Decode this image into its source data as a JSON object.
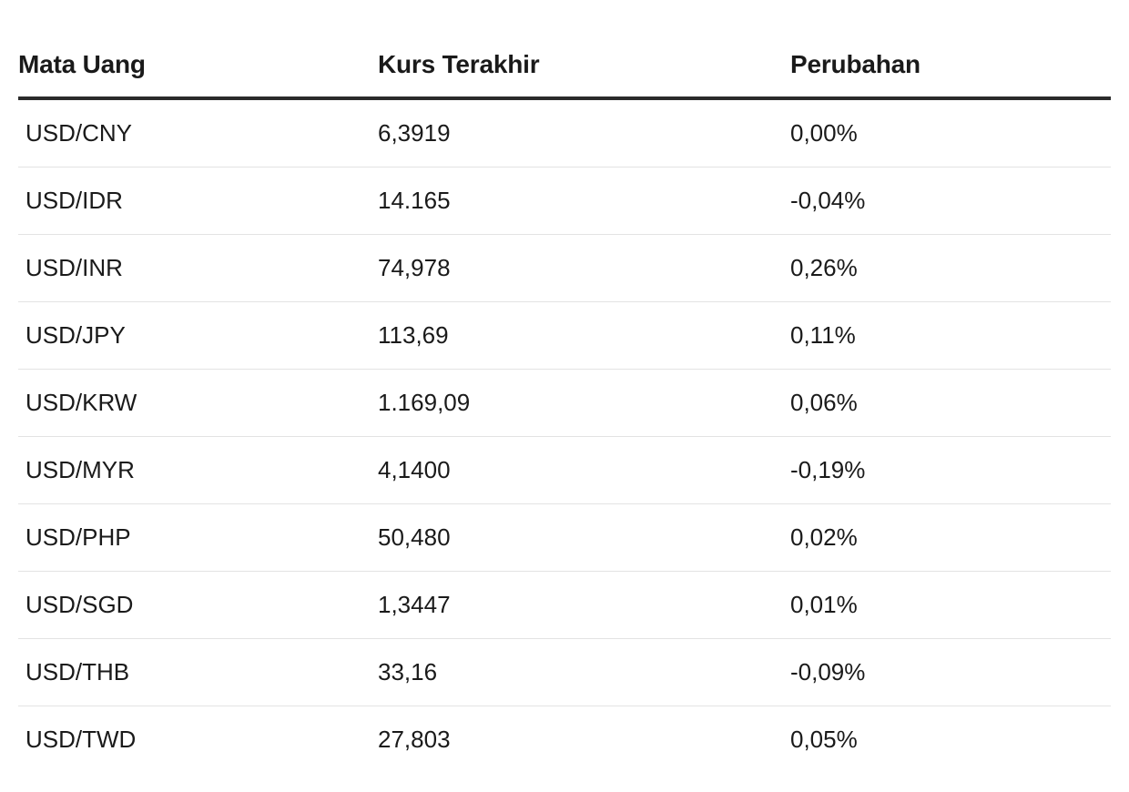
{
  "table": {
    "headers": {
      "currency": "Mata Uang",
      "rate": "Kurs Terakhir",
      "change": "Perubahan"
    },
    "rows": [
      {
        "pair": "USD/CNY",
        "rate": "6,3919",
        "change": "0,00%"
      },
      {
        "pair": "USD/IDR",
        "rate": "14.165",
        "change": "-0,04%"
      },
      {
        "pair": "USD/INR",
        "rate": "74,978",
        "change": "0,26%"
      },
      {
        "pair": "USD/JPY",
        "rate": "113,69",
        "change": "0,11%"
      },
      {
        "pair": "USD/KRW",
        "rate": "1.169,09",
        "change": "0,06%"
      },
      {
        "pair": "USD/MYR",
        "rate": "4,1400",
        "change": "-0,19%"
      },
      {
        "pair": "USD/PHP",
        "rate": "50,480",
        "change": "0,02%"
      },
      {
        "pair": "USD/SGD",
        "rate": "1,3447",
        "change": "0,01%"
      },
      {
        "pair": "USD/THB",
        "rate": "33,16",
        "change": "-0,09%"
      },
      {
        "pair": "USD/TWD",
        "rate": "27,803",
        "change": "0,05%"
      }
    ]
  }
}
